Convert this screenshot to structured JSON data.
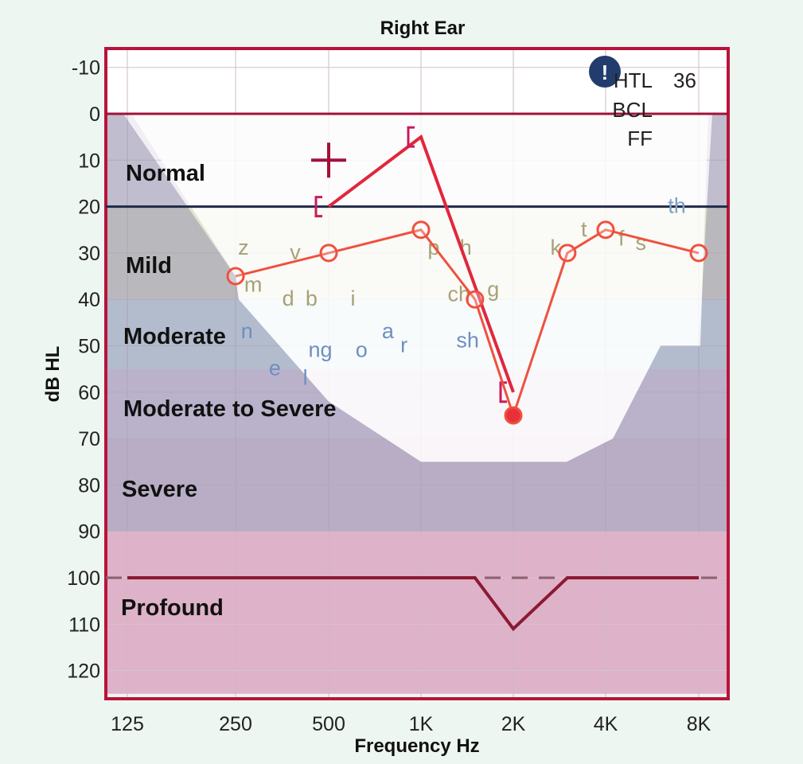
{
  "chart_data": {
    "type": "line",
    "title": "Right Ear",
    "xlabel": "Frequency Hz",
    "ylabel": "dB HL",
    "ylim": [
      -15,
      125
    ],
    "x_ticks": [
      "125",
      "250",
      "500",
      "1K",
      "2K",
      "4K",
      "8K"
    ],
    "y_ticks": [
      "-10",
      "0",
      "10",
      "20",
      "30",
      "40",
      "50",
      "60",
      "70",
      "80",
      "90",
      "100",
      "110",
      "120"
    ],
    "bands": [
      {
        "label": "Normal",
        "from": 0,
        "to": 20
      },
      {
        "label": "Mild",
        "from": 20,
        "to": 40
      },
      {
        "label": "Moderate",
        "from": 40,
        "to": 55
      },
      {
        "label": "Moderate to Severe",
        "from": 55,
        "to": 70
      },
      {
        "label": "Severe",
        "from": 70,
        "to": 90
      },
      {
        "label": "Profound",
        "from": 90,
        "to": 120
      }
    ],
    "series": [
      {
        "name": "Air conduction (circles)",
        "color": "#f0503e",
        "points": [
          [
            250,
            35
          ],
          [
            500,
            30
          ],
          [
            1000,
            25
          ],
          [
            1500,
            40
          ],
          [
            2000,
            65
          ],
          [
            3000,
            30
          ],
          [
            4000,
            25
          ],
          [
            8000,
            30
          ]
        ]
      },
      {
        "name": "Bone conduction (brackets)",
        "color": "#e2263c",
        "points": [
          [
            500,
            20
          ],
          [
            1000,
            5
          ],
          [
            2000,
            60
          ]
        ]
      },
      {
        "name": "Limit line",
        "color": "#8c1a32",
        "points": [
          [
            125,
            100
          ],
          [
            1500,
            100
          ],
          [
            2000,
            111
          ],
          [
            3000,
            100
          ],
          [
            8000,
            100
          ]
        ]
      }
    ],
    "speech_sounds": [
      {
        "text": "z",
        "f": 265,
        "db": 29,
        "color": "#a7a177"
      },
      {
        "text": "v",
        "f": 390,
        "db": 30,
        "color": "#a7a177"
      },
      {
        "text": "m",
        "f": 285,
        "db": 37,
        "color": "#a7a177"
      },
      {
        "text": "d",
        "f": 370,
        "db": 40,
        "color": "#a7a177"
      },
      {
        "text": "b",
        "f": 440,
        "db": 40,
        "color": "#a7a177"
      },
      {
        "text": "i",
        "f": 600,
        "db": 40,
        "color": "#a7a177"
      },
      {
        "text": "p",
        "f": 1100,
        "db": 29,
        "color": "#a7a177"
      },
      {
        "text": "h",
        "f": 1400,
        "db": 29,
        "color": "#a7a177"
      },
      {
        "text": "ch",
        "f": 1330,
        "db": 39,
        "color": "#a7a177"
      },
      {
        "text": "g",
        "f": 1720,
        "db": 38,
        "color": "#a7a177"
      },
      {
        "text": "k",
        "f": 2750,
        "db": 29,
        "color": "#a7a177"
      },
      {
        "text": "t",
        "f": 3400,
        "db": 25,
        "color": "#a7a177"
      },
      {
        "text": "f",
        "f": 4500,
        "db": 27,
        "color": "#a7a177"
      },
      {
        "text": "s",
        "f": 5200,
        "db": 28,
        "color": "#a7a177"
      },
      {
        "text": "th",
        "f": 6800,
        "db": 20,
        "color": "#7fa0c4"
      },
      {
        "text": "n",
        "f": 272,
        "db": 47,
        "color": "#6e8fc0"
      },
      {
        "text": "ng",
        "f": 470,
        "db": 51,
        "color": "#6e8fc0"
      },
      {
        "text": "o",
        "f": 640,
        "db": 51,
        "color": "#6e8fc0"
      },
      {
        "text": "a",
        "f": 780,
        "db": 47,
        "color": "#6e8fc0"
      },
      {
        "text": "r",
        "f": 880,
        "db": 50,
        "color": "#6e8fc0"
      },
      {
        "text": "sh",
        "f": 1420,
        "db": 49,
        "color": "#6e8fc0"
      },
      {
        "text": "e",
        "f": 335,
        "db": 55,
        "color": "#6e8fc0"
      },
      {
        "text": "l",
        "f": 420,
        "db": 57,
        "color": "#6e8fc0"
      }
    ],
    "legend": {
      "position": "top-right",
      "items": [
        "HTL",
        "BCL",
        "FF"
      ],
      "htl_value": "36",
      "info_icon": "info-icon"
    }
  }
}
